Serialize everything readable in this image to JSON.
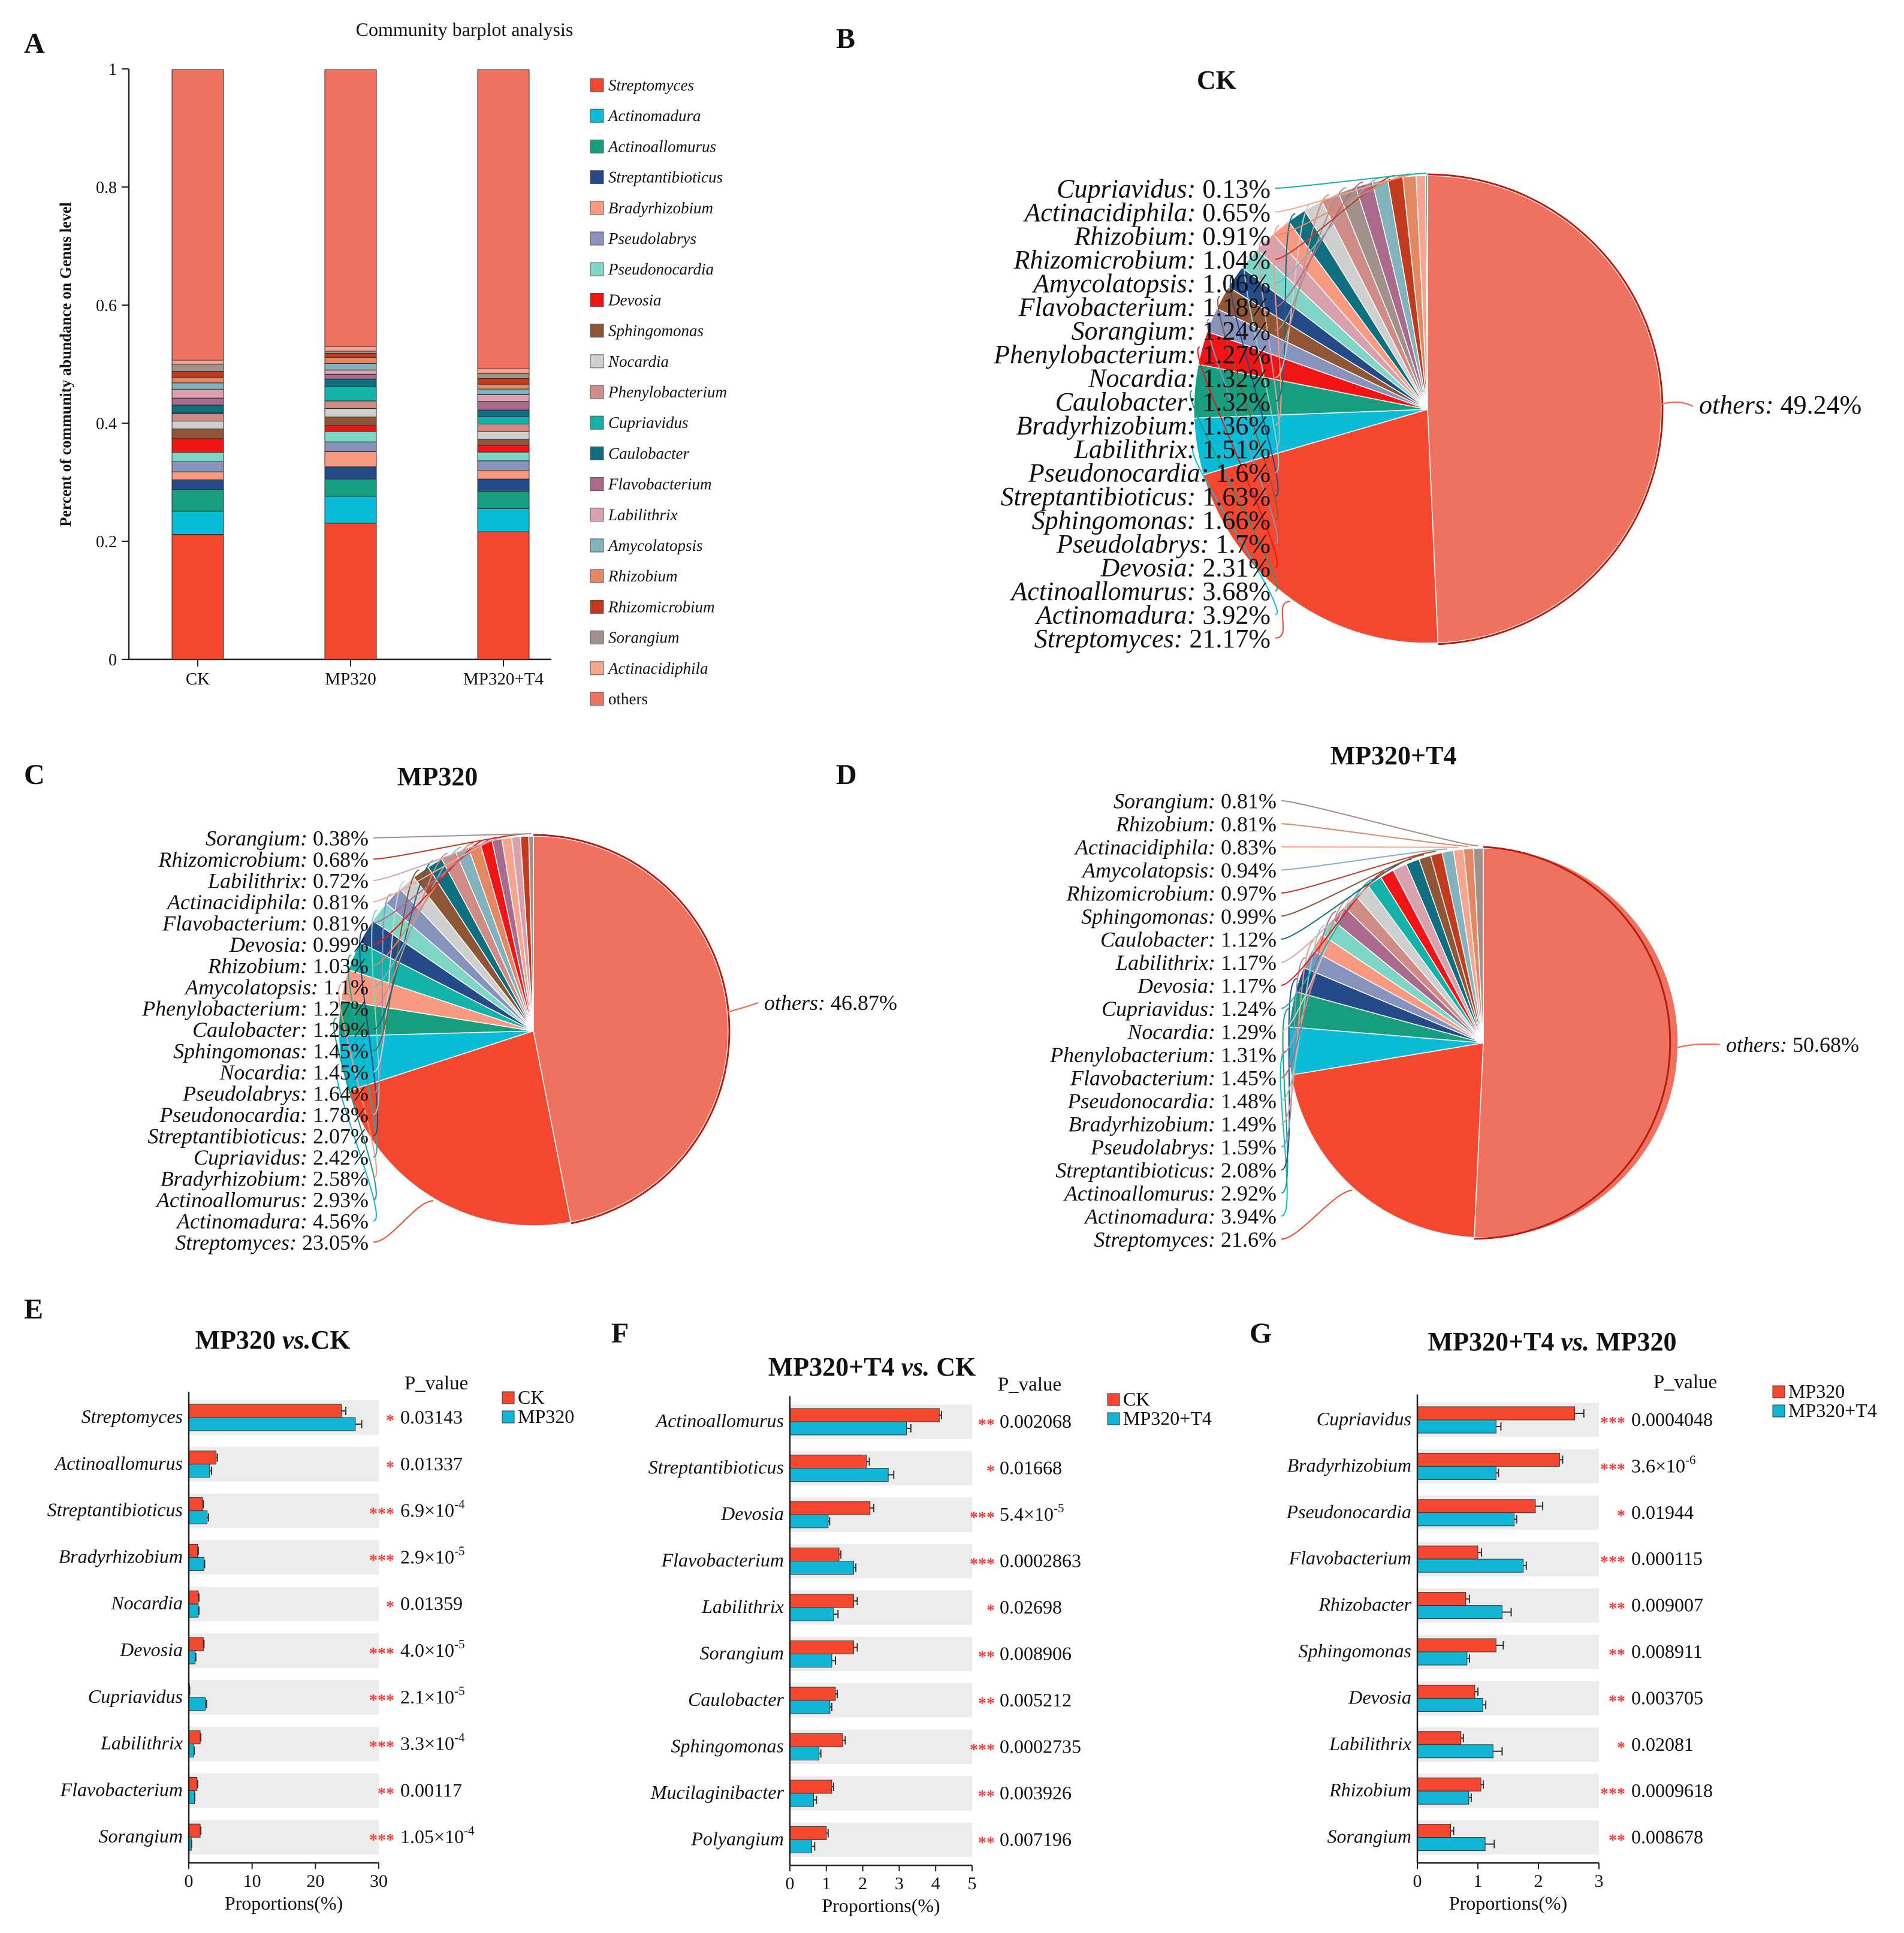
{
  "colors": {
    "Streptomyces": "#f4472f",
    "Actinomadura": "#0abcd6",
    "Actinoallomurus": "#169e7e",
    "Streptantibioticus": "#244b88",
    "Bradyrhizobium": "#f89a82",
    "Pseudolabrys": "#8893bd",
    "Pseudonocardia": "#7fd6c6",
    "Devosia": "#f01414",
    "Sphingomonas": "#8e5537",
    "Nocardia": "#cfcfcf",
    "Phenylobacterium": "#cf8b85",
    "Cupriavidus": "#14b3a9",
    "Caulobacter": "#0f6f7f",
    "Flavobacterium": "#a96a8c",
    "Labilithrix": "#d9a0ad",
    "Amycolatopsis": "#82b3bd",
    "Rhizobium": "#e48763",
    "Rhizomicrobium": "#c23b1e",
    "Sorangium": "#a2918a",
    "Actinacidiphila": "#f7a58f",
    "others": "#ef7160",
    "bar_red": "#f4472f",
    "bar_cyan": "#12b5d6",
    "star": "#f23d3d",
    "band": "#ececec"
  },
  "panel_letters": [
    "A",
    "B",
    "C",
    "D",
    "E",
    "F",
    "G"
  ],
  "chart_data": [
    {
      "id": "A",
      "type": "bar",
      "stacked": true,
      "title": "Community barplot analysis",
      "ylabel": "Percent of community abundance on Genus level",
      "xlabel": "",
      "ylim": [
        0,
        1
      ],
      "yticks": [
        "0",
        "0.2",
        "0.4",
        "0.6",
        "0.8",
        "1"
      ],
      "categories": [
        "CK",
        "MP320",
        "MP320+T4"
      ],
      "legend": [
        "Streptomyces",
        "Actinomadura",
        "Actinoallomurus",
        "Streptantibioticus",
        "Bradyrhizobium",
        "Pseudolabrys",
        "Pseudonocardia",
        "Devosia",
        "Sphingomonas",
        "Nocardia",
        "Phenylobacterium",
        "Cupriavidus",
        "Caulobacter",
        "Flavobacterium",
        "Labilithrix",
        "Amycolatopsis",
        "Rhizobium",
        "Rhizomicrobium",
        "Sorangium",
        "Actinacidiphila",
        "others"
      ],
      "series": [
        {
          "name": "Streptomyces",
          "values": [
            0.2117,
            0.2305,
            0.216
          ]
        },
        {
          "name": "Actinomadura",
          "values": [
            0.0392,
            0.0456,
            0.0394
          ]
        },
        {
          "name": "Actinoallomurus",
          "values": [
            0.0368,
            0.0293,
            0.0292
          ]
        },
        {
          "name": "Streptantibioticus",
          "values": [
            0.0163,
            0.0207,
            0.0208
          ]
        },
        {
          "name": "Bradyrhizobium",
          "values": [
            0.0136,
            0.0258,
            0.0149
          ]
        },
        {
          "name": "Pseudolabrys",
          "values": [
            0.017,
            0.0164,
            0.0159
          ]
        },
        {
          "name": "Pseudonocardia",
          "values": [
            0.016,
            0.0178,
            0.0148
          ]
        },
        {
          "name": "Devosia",
          "values": [
            0.0231,
            0.0099,
            0.0117
          ]
        },
        {
          "name": "Sphingomonas",
          "values": [
            0.0166,
            0.0145,
            0.0099
          ]
        },
        {
          "name": "Nocardia",
          "values": [
            0.0132,
            0.0145,
            0.0129
          ]
        },
        {
          "name": "Phenylobacterium",
          "values": [
            0.0127,
            0.0127,
            0.0131
          ]
        },
        {
          "name": "Cupriavidus",
          "values": [
            0.0013,
            0.0242,
            0.0124
          ]
        },
        {
          "name": "Caulobacter",
          "values": [
            0.0132,
            0.0129,
            0.0112
          ]
        },
        {
          "name": "Flavobacterium",
          "values": [
            0.0118,
            0.0081,
            0.0145
          ]
        },
        {
          "name": "Labilithrix",
          "values": [
            0.0151,
            0.0072,
            0.0117
          ]
        },
        {
          "name": "Amycolatopsis",
          "values": [
            0.0106,
            0.011,
            0.0094
          ]
        },
        {
          "name": "Rhizobium",
          "values": [
            0.0091,
            0.0103,
            0.0081
          ]
        },
        {
          "name": "Rhizomicrobium",
          "values": [
            0.0104,
            0.0068,
            0.0097
          ]
        },
        {
          "name": "Sorangium",
          "values": [
            0.0124,
            0.0038,
            0.0081
          ]
        },
        {
          "name": "Actinacidiphila",
          "values": [
            0.0065,
            0.0081,
            0.0083
          ]
        },
        {
          "name": "others",
          "values": [
            0.4924,
            0.4687,
            0.5068
          ]
        }
      ]
    },
    {
      "id": "B",
      "type": "pie",
      "title": "CK",
      "slices": [
        {
          "name": "others",
          "value": 49.24,
          "label": "49.24%"
        },
        {
          "name": "Streptomyces",
          "value": 21.17,
          "label": "21.17%"
        },
        {
          "name": "Actinomadura",
          "value": 3.92,
          "label": "3.92%"
        },
        {
          "name": "Actinoallomurus",
          "value": 3.68,
          "label": "3.68%"
        },
        {
          "name": "Devosia",
          "value": 2.31,
          "label": "2.31%"
        },
        {
          "name": "Pseudolabrys",
          "value": 1.7,
          "label": "1.7%"
        },
        {
          "name": "Sphingomonas",
          "value": 1.66,
          "label": "1.66%"
        },
        {
          "name": "Streptantibioticus",
          "value": 1.63,
          "label": "1.63%"
        },
        {
          "name": "Pseudonocardia",
          "value": 1.6,
          "label": "1.6%"
        },
        {
          "name": "Labilithrix",
          "value": 1.51,
          "label": "1.51%"
        },
        {
          "name": "Bradyrhizobium",
          "value": 1.36,
          "label": "1.36%"
        },
        {
          "name": "Caulobacter",
          "value": 1.32,
          "label": "1.32%"
        },
        {
          "name": "Nocardia",
          "value": 1.32,
          "label": "1.32%"
        },
        {
          "name": "Phenylobacterium",
          "value": 1.27,
          "label": "1.27%"
        },
        {
          "name": "Sorangium",
          "value": 1.24,
          "label": "1.24%"
        },
        {
          "name": "Flavobacterium",
          "value": 1.18,
          "label": "1.18%"
        },
        {
          "name": "Amycolatopsis",
          "value": 1.06,
          "label": "1.06%"
        },
        {
          "name": "Rhizomicrobium",
          "value": 1.04,
          "label": "1.04%"
        },
        {
          "name": "Rhizobium",
          "value": 0.91,
          "label": "0.91%"
        },
        {
          "name": "Actinacidiphila",
          "value": 0.65,
          "label": "0.65%"
        },
        {
          "name": "Cupriavidus",
          "value": 0.13,
          "label": "0.13%"
        }
      ]
    },
    {
      "id": "C",
      "type": "pie",
      "title": "MP320",
      "slices": [
        {
          "name": "others",
          "value": 46.87,
          "label": "46.87%"
        },
        {
          "name": "Streptomyces",
          "value": 23.05,
          "label": "23.05%"
        },
        {
          "name": "Actinomadura",
          "value": 4.56,
          "label": "4.56%"
        },
        {
          "name": "Actinoallomurus",
          "value": 2.93,
          "label": "2.93%"
        },
        {
          "name": "Bradyrhizobium",
          "value": 2.58,
          "label": "2.58%"
        },
        {
          "name": "Cupriavidus",
          "value": 2.42,
          "label": "2.42%"
        },
        {
          "name": "Streptantibioticus",
          "value": 2.07,
          "label": "2.07%"
        },
        {
          "name": "Pseudonocardia",
          "value": 1.78,
          "label": "1.78%"
        },
        {
          "name": "Pseudolabrys",
          "value": 1.64,
          "label": "1.64%"
        },
        {
          "name": "Nocardia",
          "value": 1.45,
          "label": "1.45%"
        },
        {
          "name": "Sphingomonas",
          "value": 1.45,
          "label": "1.45%"
        },
        {
          "name": "Caulobacter",
          "value": 1.29,
          "label": "1.29%"
        },
        {
          "name": "Phenylobacterium",
          "value": 1.27,
          "label": "1.27%"
        },
        {
          "name": "Amycolatopsis",
          "value": 1.1,
          "label": "1.1%"
        },
        {
          "name": "Rhizobium",
          "value": 1.03,
          "label": "1.03%"
        },
        {
          "name": "Devosia",
          "value": 0.99,
          "label": "0.99%"
        },
        {
          "name": "Flavobacterium",
          "value": 0.81,
          "label": "0.81%"
        },
        {
          "name": "Actinacidiphila",
          "value": 0.81,
          "label": "0.81%"
        },
        {
          "name": "Labilithrix",
          "value": 0.72,
          "label": "0.72%"
        },
        {
          "name": "Rhizomicrobium",
          "value": 0.68,
          "label": "0.68%"
        },
        {
          "name": "Sorangium",
          "value": 0.38,
          "label": "0.38%"
        }
      ]
    },
    {
      "id": "D",
      "type": "pie",
      "title": "MP320+T4",
      "slices": [
        {
          "name": "others",
          "value": 50.68,
          "label": "50.68%"
        },
        {
          "name": "Streptomyces",
          "value": 21.6,
          "label": "21.6%"
        },
        {
          "name": "Actinomadura",
          "value": 3.94,
          "label": "3.94%"
        },
        {
          "name": "Actinoallomurus",
          "value": 2.92,
          "label": "2.92%"
        },
        {
          "name": "Streptantibioticus",
          "value": 2.08,
          "label": "2.08%"
        },
        {
          "name": "Pseudolabrys",
          "value": 1.59,
          "label": "1.59%"
        },
        {
          "name": "Bradyrhizobium",
          "value": 1.49,
          "label": "1.49%"
        },
        {
          "name": "Pseudonocardia",
          "value": 1.48,
          "label": "1.48%"
        },
        {
          "name": "Flavobacterium",
          "value": 1.45,
          "label": "1.45%"
        },
        {
          "name": "Phenylobacterium",
          "value": 1.31,
          "label": "1.31%"
        },
        {
          "name": "Nocardia",
          "value": 1.29,
          "label": "1.29%"
        },
        {
          "name": "Cupriavidus",
          "value": 1.24,
          "label": "1.24%"
        },
        {
          "name": "Devosia",
          "value": 1.17,
          "label": "1.17%"
        },
        {
          "name": "Labilithrix",
          "value": 1.17,
          "label": "1.17%"
        },
        {
          "name": "Caulobacter",
          "value": 1.12,
          "label": "1.12%"
        },
        {
          "name": "Sphingomonas",
          "value": 0.99,
          "label": "0.99%"
        },
        {
          "name": "Rhizomicrobium",
          "value": 0.97,
          "label": "0.97%"
        },
        {
          "name": "Amycolatopsis",
          "value": 0.94,
          "label": "0.94%"
        },
        {
          "name": "Actinacidiphila",
          "value": 0.83,
          "label": "0.83%"
        },
        {
          "name": "Rhizobium",
          "value": 0.81,
          "label": "0.81%"
        },
        {
          "name": "Sorangium",
          "value": 0.81,
          "label": "0.81%"
        }
      ]
    },
    {
      "id": "E",
      "type": "bar",
      "orientation": "horizontal",
      "title_a": "MP320 ",
      "title_b": "vs.",
      "title_c": "CK",
      "pvalue_header": "P_value",
      "xlabel": "Proportions(%)",
      "xlim": [
        0,
        30
      ],
      "xticks": [
        "0",
        "10",
        "20",
        "30"
      ],
      "categories": [
        "Streptomyces",
        "Actinoallomurus",
        "Streptantibioticus",
        "Bradyrhizobium",
        "Nocardia",
        "Devosia",
        "Cupriavidus",
        "Labilithrix",
        "Flavobacterium",
        "Sorangium"
      ],
      "series": [
        {
          "name": "CK",
          "values": [
            24.1,
            4.3,
            2.2,
            1.4,
            1.5,
            2.3,
            0.12,
            1.8,
            1.3,
            1.8
          ],
          "err": [
            0.7,
            0.2,
            0.1,
            0.1,
            0.1,
            0.1,
            0.02,
            0.1,
            0.1,
            0.1
          ]
        },
        {
          "name": "MP320",
          "values": [
            26.3,
            3.3,
            2.9,
            2.4,
            1.5,
            1.0,
            2.6,
            0.8,
            0.9,
            0.4
          ],
          "err": [
            1.0,
            0.3,
            0.2,
            0.1,
            0.1,
            0.1,
            0.2,
            0.05,
            0.05,
            0.03
          ]
        }
      ],
      "stars": [
        "*",
        "*",
        "***",
        "***",
        "*",
        "***",
        "***",
        "***",
        "**",
        "***"
      ],
      "pvalues": [
        "0.03143",
        "0.01337",
        "6.9×10-4",
        "2.9×10-5",
        "0.01359",
        "4.0×10-5",
        "2.1×10-5",
        "3.3×10-4",
        "0.00117",
        "1.05×10-4"
      ]
    },
    {
      "id": "F",
      "type": "bar",
      "orientation": "horizontal",
      "title_a": "MP320+T4 ",
      "title_b": "vs.",
      "title_c": " CK",
      "pvalue_header": "P_value",
      "xlabel": "Proportions(%)",
      "xlim": [
        0,
        5
      ],
      "xticks": [
        "0",
        "1",
        "2",
        "3",
        "4",
        "5"
      ],
      "categories": [
        "Actinoallomurus",
        "Streptantibioticus",
        "Devosia",
        "Flavobacterium",
        "Labilithrix",
        "Sorangium",
        "Caulobacter",
        "Sphingomonas",
        "Mucilaginibacter",
        "Polyangium"
      ],
      "series": [
        {
          "name": "CK",
          "values": [
            4.1,
            2.1,
            2.2,
            1.35,
            1.75,
            1.75,
            1.25,
            1.45,
            1.15,
            1.0
          ],
          "err": [
            0.06,
            0.08,
            0.1,
            0.05,
            0.1,
            0.1,
            0.05,
            0.07,
            0.05,
            0.05
          ]
        },
        {
          "name": "MP320+T4",
          "values": [
            3.2,
            2.7,
            1.05,
            1.75,
            1.2,
            1.15,
            1.1,
            0.8,
            0.65,
            0.6
          ],
          "err": [
            0.12,
            0.15,
            0.04,
            0.06,
            0.12,
            0.1,
            0.05,
            0.05,
            0.08,
            0.08
          ]
        }
      ],
      "stars": [
        "**",
        "*",
        "***",
        "***",
        "*",
        "**",
        "**",
        "***",
        "**",
        "**"
      ],
      "pvalues": [
        "0.002068",
        "0.01668",
        "5.4×10-5",
        "0.0002863",
        "0.02698",
        "0.008906",
        "0.005212",
        "0.0002735",
        "0.003926",
        "0.007196"
      ]
    },
    {
      "id": "G",
      "type": "bar",
      "orientation": "horizontal",
      "title_a": "MP320+T4 ",
      "title_b": "vs.",
      "title_c": " MP320",
      "pvalue_header": "P_value",
      "xlabel": "Proportions(%)",
      "xlim": [
        0,
        3
      ],
      "xticks": [
        "0",
        "1",
        "2",
        "3"
      ],
      "categories": [
        "Cupriavidus",
        "Bradyrhizobium",
        "Pseudonocardia",
        "Flavobacterium",
        "Rhizobacter",
        "Sphingomonas",
        "Devosia",
        "Labilithrix",
        "Rhizobium",
        "Sorangium"
      ],
      "series": [
        {
          "name": "MP320",
          "values": [
            2.6,
            2.35,
            1.95,
            1.0,
            0.8,
            1.3,
            0.95,
            0.72,
            1.05,
            0.55
          ],
          "err": [
            0.15,
            0.05,
            0.12,
            0.06,
            0.06,
            0.12,
            0.05,
            0.04,
            0.04,
            0.05
          ]
        },
        {
          "name": "MP320+T4",
          "values": [
            1.3,
            1.3,
            1.6,
            1.75,
            1.4,
            0.82,
            1.08,
            1.25,
            0.85,
            1.12
          ],
          "err": [
            0.08,
            0.04,
            0.04,
            0.05,
            0.15,
            0.04,
            0.05,
            0.15,
            0.04,
            0.15
          ]
        }
      ],
      "stars": [
        "***",
        "***",
        "*",
        "***",
        "**",
        "**",
        "**",
        "*",
        "***",
        "**"
      ],
      "pvalues": [
        "0.0004048",
        "3.6×10-6",
        "0.01944",
        "0.000115",
        "0.009007",
        "0.008911",
        "0.003705",
        "0.02081",
        "0.0009618",
        "0.008678"
      ]
    }
  ]
}
